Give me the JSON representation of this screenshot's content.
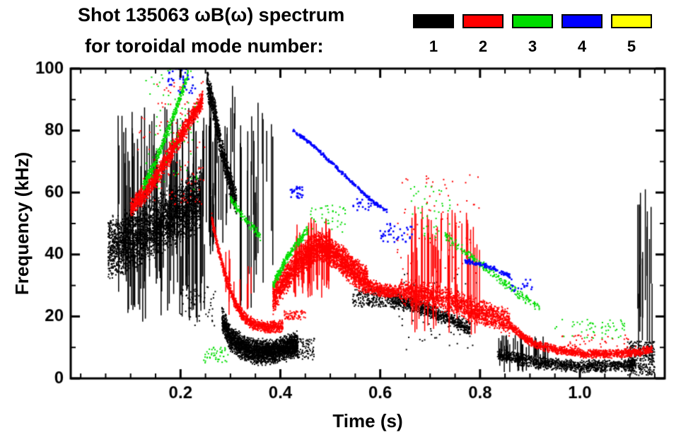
{
  "chart_data": {
    "type": "scatter",
    "title_line1": "Shot 135063 ωB(ω) spectrum",
    "title_line2": "for toroidal mode number:",
    "xlabel": "Time (s)",
    "ylabel": "Frequency (kHz)",
    "xlim": [
      -0.02,
      1.17
    ],
    "ylim": [
      0,
      100
    ],
    "xticks": {
      "values": [
        0.2,
        0.4,
        0.6,
        0.8,
        1.0
      ],
      "labels": [
        "0.2",
        "0.4",
        "0.6",
        "0.8",
        "1.0"
      ]
    },
    "yticks": {
      "values": [
        0,
        20,
        40,
        60,
        80,
        100
      ],
      "labels": [
        "0",
        "20",
        "40",
        "60",
        "80",
        "100"
      ]
    },
    "xminor": 0.05,
    "yminor": 10,
    "grid": false,
    "legend_position": "top-right",
    "legend": [
      {
        "label": "1",
        "color": "#000000"
      },
      {
        "label": "2",
        "color": "#ff0000"
      },
      {
        "label": "3",
        "color": "#00dd00"
      },
      {
        "label": "4",
        "color": "#0000ff"
      },
      {
        "label": "5",
        "color": "#ffff00"
      }
    ],
    "series": [
      {
        "name": "n=1",
        "mode_number": 1,
        "color": "#000000",
        "elements": [
          {
            "kind": "band",
            "pts": [
              [
                0.055,
                42
              ],
              [
                0.09,
                44
              ],
              [
                0.13,
                47
              ],
              [
                0.17,
                51
              ],
              [
                0.21,
                55
              ],
              [
                0.24,
                58
              ]
            ],
            "w": 11,
            "n": 2600,
            "size": 2
          },
          {
            "kind": "vlines",
            "t": [
              0.075,
              0.26
            ],
            "f": [
              18,
              88
            ],
            "span": [
              12,
              50
            ],
            "n": 110
          },
          {
            "kind": "band",
            "pts": [
              [
                0.253,
                96
              ],
              [
                0.268,
                86
              ],
              [
                0.282,
                74
              ],
              [
                0.298,
                64
              ],
              [
                0.312,
                57
              ]
            ],
            "w": 5,
            "n": 900,
            "size": 2
          },
          {
            "kind": "vlines",
            "t": [
              0.255,
              0.315
            ],
            "f": [
              40,
              95
            ],
            "span": [
              10,
              35
            ],
            "n": 30
          },
          {
            "kind": "vlines",
            "t": [
              0.315,
              0.385
            ],
            "f": [
              22,
              90
            ],
            "span": [
              15,
              55
            ],
            "n": 22
          },
          {
            "kind": "band",
            "pts": [
              [
                0.283,
                19
              ],
              [
                0.3,
                13
              ],
              [
                0.325,
                10
              ],
              [
                0.355,
                8.5
              ],
              [
                0.385,
                8.5
              ],
              [
                0.415,
                10
              ],
              [
                0.435,
                11
              ]
            ],
            "w": 4.5,
            "n": 2600,
            "size": 2
          },
          {
            "kind": "dots",
            "t": [
              0.43,
              0.47
            ],
            "f": [
              6,
              13
            ],
            "n": 90,
            "size": 2
          },
          {
            "kind": "dots",
            "t": [
              0.2,
              0.27
            ],
            "f": [
              17,
              30
            ],
            "n": 60,
            "size": 2
          },
          {
            "kind": "dots",
            "t": [
              0.545,
              0.625
            ],
            "f": [
              23,
              29
            ],
            "n": 220,
            "size": 2
          },
          {
            "kind": "band",
            "pts": [
              [
                0.625,
                25
              ],
              [
                0.66,
                24
              ],
              [
                0.7,
                22
              ],
              [
                0.74,
                19
              ],
              [
                0.78,
                16
              ]
            ],
            "w": 2.8,
            "n": 800,
            "size": 2
          },
          {
            "kind": "dots",
            "t": [
              0.63,
              0.8
            ],
            "f": [
              9,
              34
            ],
            "n": 70,
            "size": 2
          },
          {
            "kind": "band",
            "pts": [
              [
                0.835,
                8
              ],
              [
                0.87,
                6.5
              ],
              [
                0.92,
                5
              ],
              [
                0.98,
                4
              ],
              [
                1.05,
                4
              ],
              [
                1.11,
                4.5
              ]
            ],
            "w": 2.2,
            "n": 1100,
            "size": 2
          },
          {
            "kind": "vlines",
            "t": [
              0.835,
              0.94
            ],
            "f": [
              2,
              14
            ],
            "span": [
              4,
              9
            ],
            "n": 35
          },
          {
            "kind": "dots",
            "t": [
              1.095,
              1.15
            ],
            "f": [
              1,
              12
            ],
            "n": 320,
            "size": 2
          },
          {
            "kind": "vlines",
            "t": [
              1.115,
              1.148
            ],
            "f": [
              5,
              62
            ],
            "span": [
              8,
              45
            ],
            "n": 14
          }
        ]
      },
      {
        "name": "n=2",
        "mode_number": 2,
        "color": "#ff0000",
        "elements": [
          {
            "kind": "band",
            "pts": [
              [
                0.1,
                55
              ],
              [
                0.135,
                61
              ],
              [
                0.17,
                70
              ],
              [
                0.2,
                78
              ],
              [
                0.225,
                85
              ],
              [
                0.245,
                90
              ]
            ],
            "w": 3.5,
            "n": 1500,
            "size": 2
          },
          {
            "kind": "dots",
            "t": [
              0.115,
              0.25
            ],
            "f": [
              56,
              96
            ],
            "n": 130,
            "size": 2
          },
          {
            "kind": "band",
            "pts": [
              [
                0.262,
                52
              ],
              [
                0.275,
                42
              ],
              [
                0.29,
                33
              ],
              [
                0.305,
                26
              ],
              [
                0.325,
                20
              ],
              [
                0.35,
                17
              ],
              [
                0.385,
                16.5
              ],
              [
                0.405,
                17
              ]
            ],
            "w": 2.2,
            "n": 1000,
            "size": 2
          },
          {
            "kind": "dots",
            "t": [
              0.408,
              0.45
            ],
            "f": [
              19,
              22
            ],
            "n": 70,
            "size": 2
          },
          {
            "kind": "band",
            "pts": [
              [
                0.385,
                26
              ],
              [
                0.41,
                32
              ],
              [
                0.435,
                37
              ],
              [
                0.46,
                41
              ],
              [
                0.478,
                43
              ],
              [
                0.5,
                41
              ],
              [
                0.525,
                38
              ],
              [
                0.55,
                34
              ],
              [
                0.575,
                31
              ]
            ],
            "w": 5.5,
            "n": 2800,
            "size": 2
          },
          {
            "kind": "vlines",
            "t": [
              0.425,
              0.5
            ],
            "f": [
              26,
              52
            ],
            "span": [
              8,
              18
            ],
            "n": 45
          },
          {
            "kind": "band",
            "pts": [
              [
                0.575,
                30
              ],
              [
                0.61,
                28
              ],
              [
                0.64,
                28
              ]
            ],
            "w": 2.5,
            "n": 420,
            "size": 2
          },
          {
            "kind": "band",
            "pts": [
              [
                0.64,
                28
              ],
              [
                0.69,
                27
              ],
              [
                0.74,
                25
              ],
              [
                0.79,
                22
              ],
              [
                0.83,
                20
              ],
              [
                0.86,
                18
              ]
            ],
            "w": 4.5,
            "n": 1600,
            "size": 2
          },
          {
            "kind": "vlines",
            "t": [
              0.655,
              0.8
            ],
            "f": [
              14,
              56
            ],
            "span": [
              10,
              32
            ],
            "n": 50
          },
          {
            "kind": "dots",
            "t": [
              0.63,
              0.8
            ],
            "f": [
              34,
              66
            ],
            "n": 70,
            "size": 2
          },
          {
            "kind": "band",
            "pts": [
              [
                0.86,
                17
              ],
              [
                0.89,
                13
              ],
              [
                0.92,
                10.5
              ],
              [
                0.96,
                9
              ],
              [
                1.01,
                8
              ],
              [
                1.07,
                8
              ],
              [
                1.12,
                8.5
              ],
              [
                1.145,
                9.5
              ]
            ],
            "w": 1.6,
            "n": 1300,
            "size": 2
          },
          {
            "kind": "dots",
            "t": [
              0.95,
              1.12
            ],
            "f": [
              10,
              14
            ],
            "n": 45,
            "size": 2
          },
          {
            "kind": "vlines",
            "t": [
              0.29,
              0.345
            ],
            "f": [
              20,
              42
            ],
            "span": [
              5,
              14
            ],
            "n": 10
          }
        ]
      },
      {
        "name": "n=3",
        "mode_number": 3,
        "color": "#00dd00",
        "elements": [
          {
            "kind": "band",
            "pts": [
              [
                0.125,
                62
              ],
              [
                0.15,
                70
              ],
              [
                0.175,
                80
              ],
              [
                0.198,
                90
              ],
              [
                0.215,
                98
              ]
            ],
            "w": 2.2,
            "n": 400,
            "size": 2
          },
          {
            "kind": "dots",
            "t": [
              0.13,
              0.235
            ],
            "f": [
              60,
              100
            ],
            "n": 70,
            "size": 2
          },
          {
            "kind": "dots",
            "t": [
              0.245,
              0.295
            ],
            "f": [
              5,
              10
            ],
            "n": 45,
            "size": 2
          },
          {
            "kind": "band",
            "pts": [
              [
                0.3,
                58
              ],
              [
                0.33,
                51
              ],
              [
                0.36,
                46
              ]
            ],
            "w": 1.8,
            "n": 130,
            "size": 2
          },
          {
            "kind": "band",
            "pts": [
              [
                0.385,
                30
              ],
              [
                0.41,
                38
              ],
              [
                0.435,
                44
              ],
              [
                0.455,
                48
              ]
            ],
            "w": 1.8,
            "n": 260,
            "size": 2
          },
          {
            "kind": "dots",
            "t": [
              0.46,
              0.53
            ],
            "f": [
              47,
              56
            ],
            "n": 40,
            "size": 2
          },
          {
            "kind": "dots",
            "t": [
              0.66,
              0.74
            ],
            "f": [
              45,
              62
            ],
            "n": 40,
            "size": 2
          },
          {
            "kind": "band",
            "pts": [
              [
                0.73,
                46
              ],
              [
                0.78,
                40
              ],
              [
                0.83,
                33
              ],
              [
                0.88,
                27
              ],
              [
                0.92,
                23
              ]
            ],
            "w": 1.8,
            "n": 240,
            "size": 2
          },
          {
            "kind": "dots",
            "t": [
              0.95,
              1.1
            ],
            "f": [
              13,
              19
            ],
            "n": 55,
            "size": 2
          }
        ]
      },
      {
        "name": "n=4",
        "mode_number": 4,
        "color": "#0000ff",
        "elements": [
          {
            "kind": "band",
            "pts": [
              [
                0.425,
                80
              ],
              [
                0.46,
                76
              ],
              [
                0.5,
                70
              ],
              [
                0.545,
                63
              ],
              [
                0.585,
                57
              ],
              [
                0.615,
                54
              ]
            ],
            "w": 0.7,
            "n": 240,
            "size": 2.5
          },
          {
            "kind": "dots",
            "t": [
              0.42,
              0.445
            ],
            "f": [
              58,
              62
            ],
            "n": 28,
            "size": 2.5
          },
          {
            "kind": "dots",
            "t": [
              0.6,
              0.665
            ],
            "f": [
              44,
              50
            ],
            "n": 40,
            "size": 2.5
          },
          {
            "kind": "band",
            "pts": [
              [
                0.77,
                38
              ],
              [
                0.82,
                36
              ],
              [
                0.86,
                33
              ]
            ],
            "w": 0.8,
            "n": 110,
            "size": 2.5
          },
          {
            "kind": "dots",
            "t": [
              0.86,
              0.905
            ],
            "f": [
              28,
              32
            ],
            "n": 18,
            "size": 2.5
          },
          {
            "kind": "dots",
            "t": [
              0.175,
              0.23
            ],
            "f": [
              92,
              100
            ],
            "n": 35,
            "size": 2.5
          },
          {
            "kind": "dots",
            "t": [
              0.545,
              0.585
            ],
            "f": [
              54,
              58
            ],
            "n": 18,
            "size": 2.5
          }
        ]
      },
      {
        "name": "n=5",
        "mode_number": 5,
        "color": "#ffff00",
        "elements": []
      }
    ]
  }
}
